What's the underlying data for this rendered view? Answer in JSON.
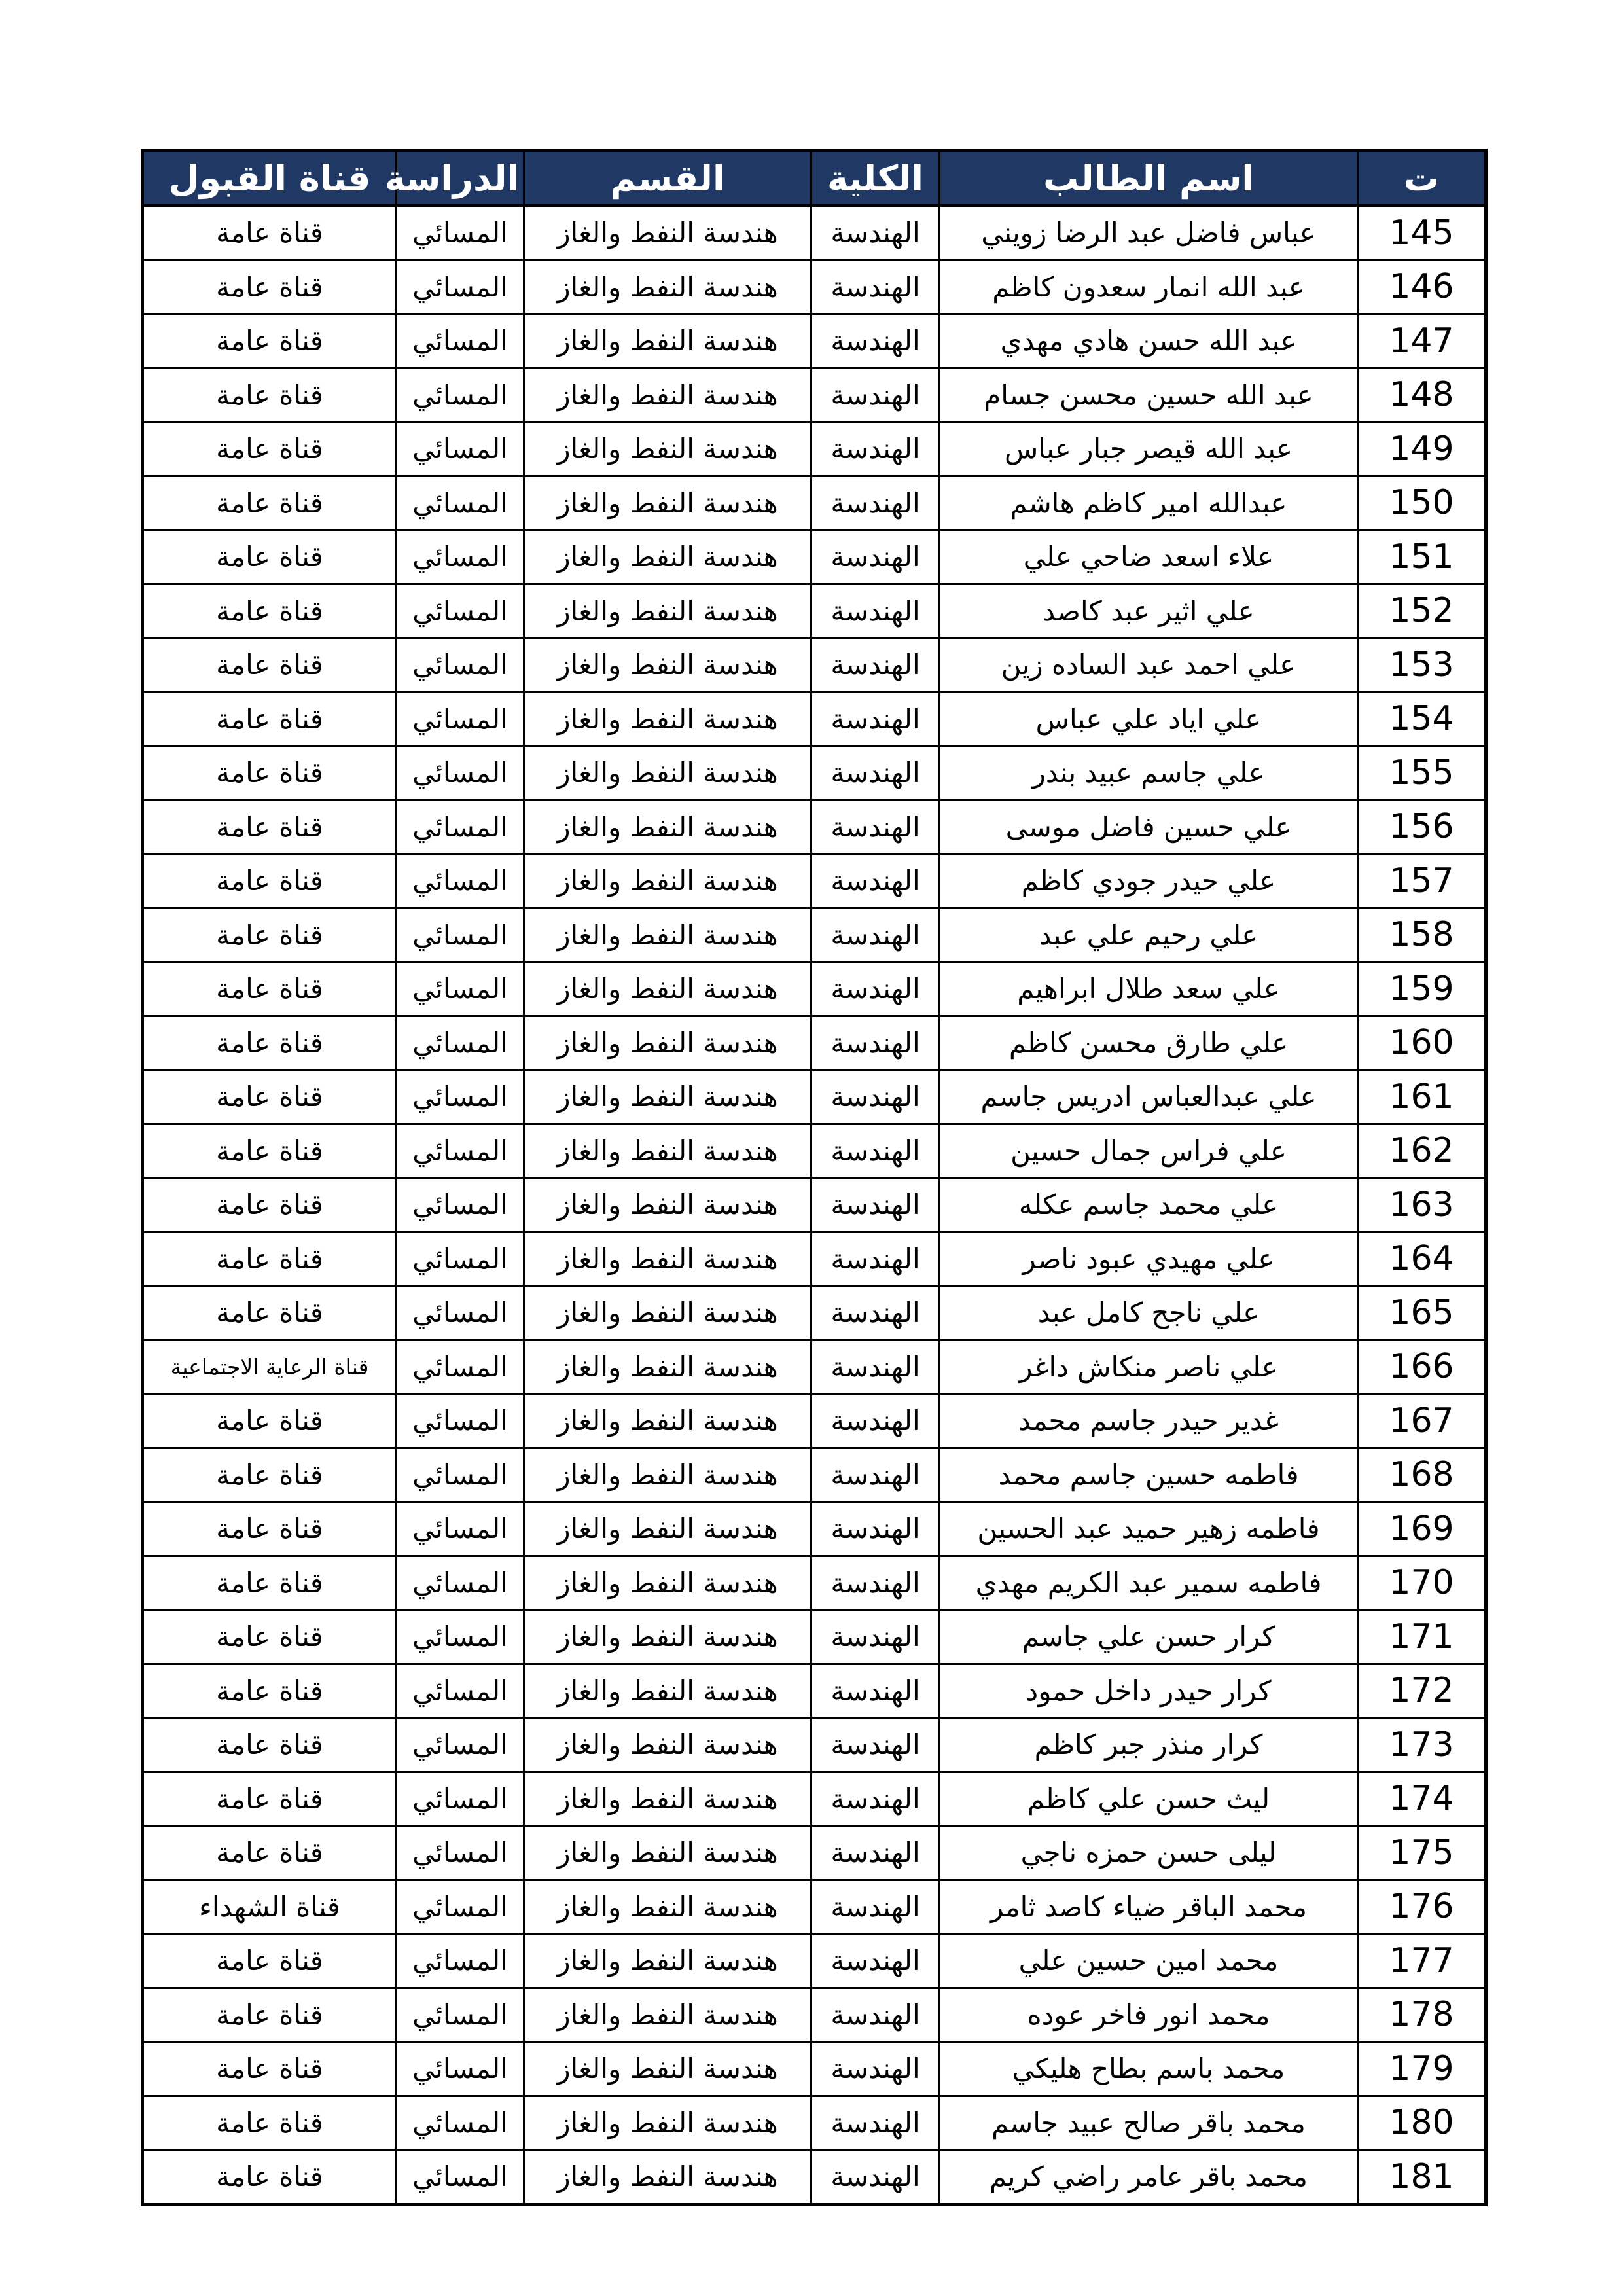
{
  "colors": {
    "page_bg": "#ffffff",
    "header_bg": "#1f3864",
    "header_text": "#ffffff",
    "border": "#000000",
    "row_bg": "#ffffff",
    "body_text": "#000000"
  },
  "table": {
    "columns": [
      "ت",
      "اسم الطالب",
      "الكلية",
      "القسم",
      "الدراسة",
      "قناة القبول"
    ],
    "rows": [
      {
        "no": "145",
        "name": "عباس فاضل عبد الرضا زويني",
        "college": "الهندسة",
        "department": "هندسة النفط والغاز",
        "study": "المسائي",
        "channel": "قناة عامة"
      },
      {
        "no": "146",
        "name": "عبد الله انمار سعدون كاظم",
        "college": "الهندسة",
        "department": "هندسة النفط والغاز",
        "study": "المسائي",
        "channel": "قناة عامة"
      },
      {
        "no": "147",
        "name": "عبد الله حسن هادي مهدي",
        "college": "الهندسة",
        "department": "هندسة النفط والغاز",
        "study": "المسائي",
        "channel": "قناة عامة"
      },
      {
        "no": "148",
        "name": "عبد الله حسين محسن جسام",
        "college": "الهندسة",
        "department": "هندسة النفط والغاز",
        "study": "المسائي",
        "channel": "قناة عامة"
      },
      {
        "no": "149",
        "name": "عبد الله قيصر جبار عباس",
        "college": "الهندسة",
        "department": "هندسة النفط والغاز",
        "study": "المسائي",
        "channel": "قناة عامة"
      },
      {
        "no": "150",
        "name": "عبدالله امير كاظم هاشم",
        "college": "الهندسة",
        "department": "هندسة النفط والغاز",
        "study": "المسائي",
        "channel": "قناة عامة"
      },
      {
        "no": "151",
        "name": "علاء اسعد ضاحي علي",
        "college": "الهندسة",
        "department": "هندسة النفط والغاز",
        "study": "المسائي",
        "channel": "قناة عامة"
      },
      {
        "no": "152",
        "name": "علي اثير عبد كاصد",
        "college": "الهندسة",
        "department": "هندسة النفط والغاز",
        "study": "المسائي",
        "channel": "قناة عامة"
      },
      {
        "no": "153",
        "name": "علي احمد عبد الساده زين",
        "college": "الهندسة",
        "department": "هندسة النفط والغاز",
        "study": "المسائي",
        "channel": "قناة عامة"
      },
      {
        "no": "154",
        "name": "علي اياد علي عباس",
        "college": "الهندسة",
        "department": "هندسة النفط والغاز",
        "study": "المسائي",
        "channel": "قناة عامة"
      },
      {
        "no": "155",
        "name": "علي جاسم عبيد بندر",
        "college": "الهندسة",
        "department": "هندسة النفط والغاز",
        "study": "المسائي",
        "channel": "قناة عامة"
      },
      {
        "no": "156",
        "name": "علي حسين فاضل موسى",
        "college": "الهندسة",
        "department": "هندسة النفط والغاز",
        "study": "المسائي",
        "channel": "قناة عامة"
      },
      {
        "no": "157",
        "name": "علي حيدر جودي كاظم",
        "college": "الهندسة",
        "department": "هندسة النفط والغاز",
        "study": "المسائي",
        "channel": "قناة عامة"
      },
      {
        "no": "158",
        "name": "علي رحيم علي عبد",
        "college": "الهندسة",
        "department": "هندسة النفط والغاز",
        "study": "المسائي",
        "channel": "قناة عامة"
      },
      {
        "no": "159",
        "name": "علي سعد طلال ابراهيم",
        "college": "الهندسة",
        "department": "هندسة النفط والغاز",
        "study": "المسائي",
        "channel": "قناة عامة"
      },
      {
        "no": "160",
        "name": "علي طارق محسن كاظم",
        "college": "الهندسة",
        "department": "هندسة النفط والغاز",
        "study": "المسائي",
        "channel": "قناة عامة"
      },
      {
        "no": "161",
        "name": "علي عبدالعباس ادريس جاسم",
        "college": "الهندسة",
        "department": "هندسة النفط والغاز",
        "study": "المسائي",
        "channel": "قناة عامة"
      },
      {
        "no": "162",
        "name": "علي فراس جمال حسين",
        "college": "الهندسة",
        "department": "هندسة النفط والغاز",
        "study": "المسائي",
        "channel": "قناة عامة"
      },
      {
        "no": "163",
        "name": "علي محمد جاسم عكله",
        "college": "الهندسة",
        "department": "هندسة النفط والغاز",
        "study": "المسائي",
        "channel": "قناة عامة"
      },
      {
        "no": "164",
        "name": "علي مهيدي عبود ناصر",
        "college": "الهندسة",
        "department": "هندسة النفط والغاز",
        "study": "المسائي",
        "channel": "قناة عامة"
      },
      {
        "no": "165",
        "name": "علي ناجح كامل عبد",
        "college": "الهندسة",
        "department": "هندسة النفط والغاز",
        "study": "المسائي",
        "channel": "قناة عامة"
      },
      {
        "no": "166",
        "name": "علي ناصر منكاش داغر",
        "college": "الهندسة",
        "department": "هندسة النفط والغاز",
        "study": "المسائي",
        "channel": "قناة الرعاية الاجتماعية"
      },
      {
        "no": "167",
        "name": "غدير حيدر جاسم محمد",
        "college": "الهندسة",
        "department": "هندسة النفط والغاز",
        "study": "المسائي",
        "channel": "قناة عامة"
      },
      {
        "no": "168",
        "name": "فاطمه حسين جاسم محمد",
        "college": "الهندسة",
        "department": "هندسة النفط والغاز",
        "study": "المسائي",
        "channel": "قناة عامة"
      },
      {
        "no": "169",
        "name": "فاطمه زهير حميد عبد الحسين",
        "college": "الهندسة",
        "department": "هندسة النفط والغاز",
        "study": "المسائي",
        "channel": "قناة عامة"
      },
      {
        "no": "170",
        "name": "فاطمه سمير عبد الكريم مهدي",
        "college": "الهندسة",
        "department": "هندسة النفط والغاز",
        "study": "المسائي",
        "channel": "قناة عامة"
      },
      {
        "no": "171",
        "name": "كرار حسن علي جاسم",
        "college": "الهندسة",
        "department": "هندسة النفط والغاز",
        "study": "المسائي",
        "channel": "قناة عامة"
      },
      {
        "no": "172",
        "name": "كرار حيدر داخل حمود",
        "college": "الهندسة",
        "department": "هندسة النفط والغاز",
        "study": "المسائي",
        "channel": "قناة عامة"
      },
      {
        "no": "173",
        "name": "كرار منذر جبر كاظم",
        "college": "الهندسة",
        "department": "هندسة النفط والغاز",
        "study": "المسائي",
        "channel": "قناة عامة"
      },
      {
        "no": "174",
        "name": "ليث حسن علي كاظم",
        "college": "الهندسة",
        "department": "هندسة النفط والغاز",
        "study": "المسائي",
        "channel": "قناة عامة"
      },
      {
        "no": "175",
        "name": "ليلى حسن حمزه ناجي",
        "college": "الهندسة",
        "department": "هندسة النفط والغاز",
        "study": "المسائي",
        "channel": "قناة عامة"
      },
      {
        "no": "176",
        "name": "محمد الباقر ضياء كاصد ثامر",
        "college": "الهندسة",
        "department": "هندسة النفط والغاز",
        "study": "المسائي",
        "channel": "قناة الشهداء"
      },
      {
        "no": "177",
        "name": "محمد امين حسين علي",
        "college": "الهندسة",
        "department": "هندسة النفط والغاز",
        "study": "المسائي",
        "channel": "قناة عامة"
      },
      {
        "no": "178",
        "name": "محمد انور فاخر عوده",
        "college": "الهندسة",
        "department": "هندسة النفط والغاز",
        "study": "المسائي",
        "channel": "قناة عامة"
      },
      {
        "no": "179",
        "name": "محمد باسم بطاح هليكي",
        "college": "الهندسة",
        "department": "هندسة النفط والغاز",
        "study": "المسائي",
        "channel": "قناة عامة"
      },
      {
        "no": "180",
        "name": "محمد باقر صالح عبيد جاسم",
        "college": "الهندسة",
        "department": "هندسة النفط والغاز",
        "study": "المسائي",
        "channel": "قناة عامة"
      },
      {
        "no": "181",
        "name": "محمد باقر عامر راضي كريم",
        "college": "الهندسة",
        "department": "هندسة النفط والغاز",
        "study": "المسائي",
        "channel": "قناة عامة"
      }
    ]
  }
}
